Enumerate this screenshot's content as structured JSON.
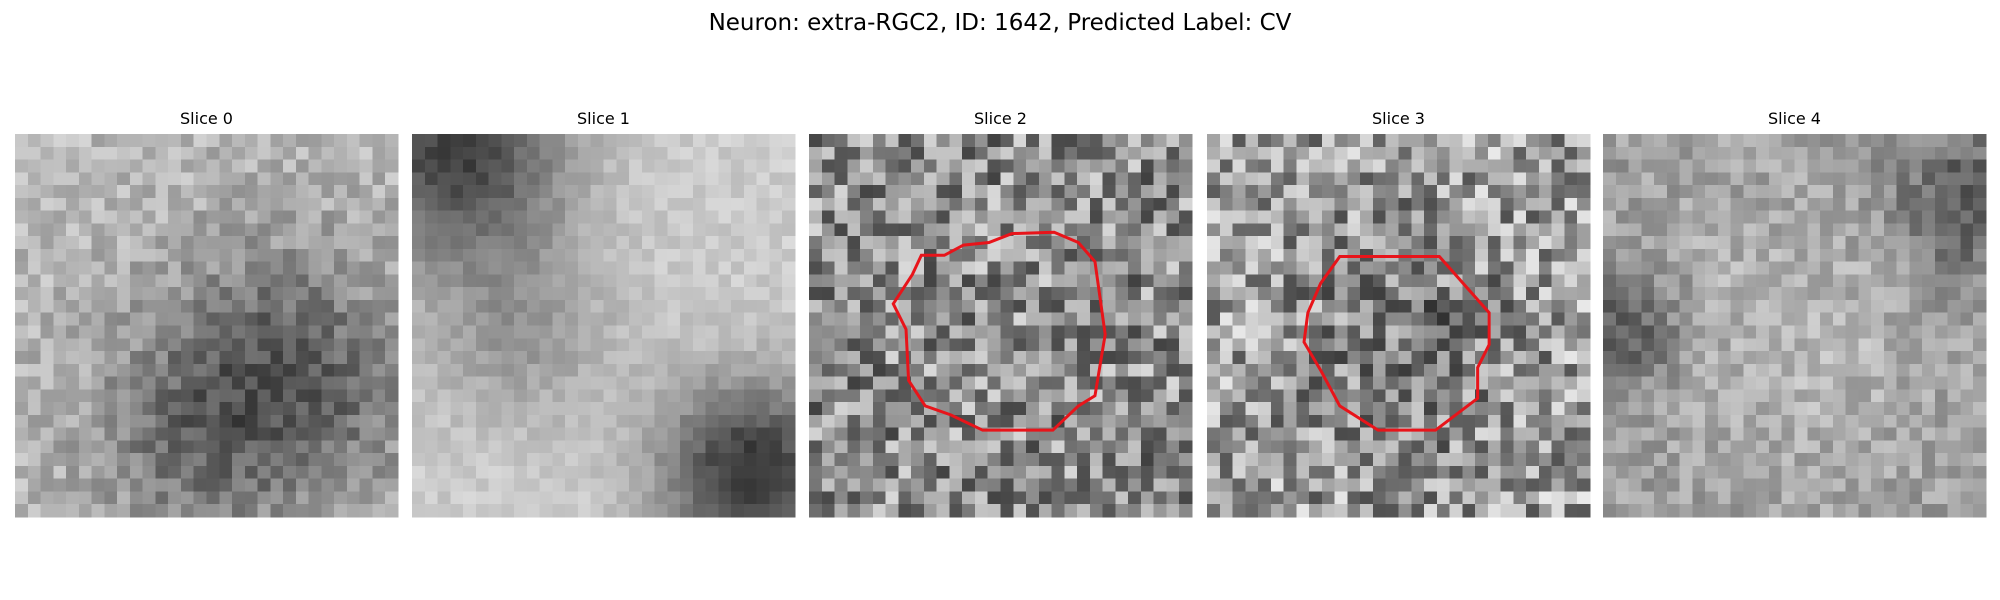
{
  "title": "Neuron: extra-RGC2, ID: 1642, Predicted Label: CV",
  "panels": [
    {
      "title": "Slice 0"
    },
    {
      "title": "Slice 1"
    },
    {
      "title": "Slice 2"
    },
    {
      "title": "Slice 3"
    },
    {
      "title": "Slice 4"
    }
  ]
}
